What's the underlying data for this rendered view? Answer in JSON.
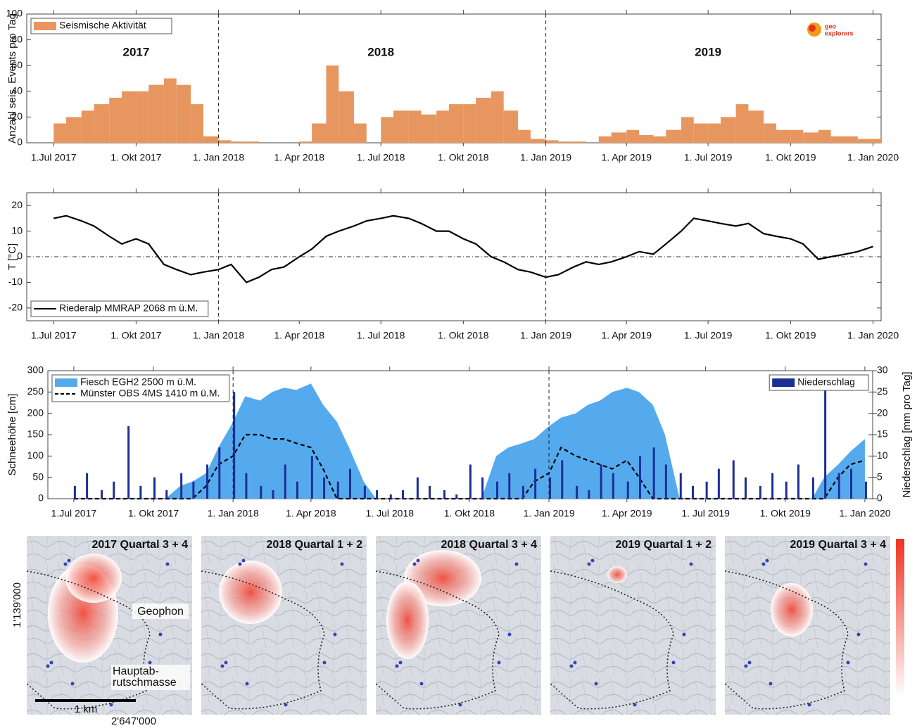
{
  "chart_data": [
    {
      "type": "bar",
      "y_label": "Anzahl seis. Events pro Tag",
      "x": [
        "2017-07-01",
        "2017-07-15",
        "2017-08-01",
        "2017-08-15",
        "2017-09-01",
        "2017-09-15",
        "2017-10-01",
        "2017-10-15",
        "2017-11-01",
        "2017-11-15",
        "2017-12-01",
        "2017-12-15",
        "2018-01-01",
        "2018-01-15",
        "2018-02-01",
        "2018-02-15",
        "2018-03-01",
        "2018-03-15",
        "2018-04-01",
        "2018-04-15",
        "2018-05-01",
        "2018-05-15",
        "2018-06-01",
        "2018-06-15",
        "2018-07-01",
        "2018-07-15",
        "2018-08-01",
        "2018-08-15",
        "2018-09-01",
        "2018-09-15",
        "2018-10-01",
        "2018-10-15",
        "2018-11-01",
        "2018-11-15",
        "2018-12-01",
        "2018-12-15",
        "2019-01-01",
        "2019-01-15",
        "2019-02-01",
        "2019-02-15",
        "2019-03-01",
        "2019-03-15",
        "2019-04-01",
        "2019-04-15",
        "2019-05-01",
        "2019-05-15",
        "2019-06-01",
        "2019-06-15",
        "2019-07-01",
        "2019-07-15",
        "2019-08-01",
        "2019-08-15",
        "2019-09-01",
        "2019-09-15",
        "2019-10-01",
        "2019-10-15",
        "2019-11-01",
        "2019-11-15",
        "2019-12-01",
        "2019-12-15",
        "2020-01-01"
      ],
      "series": [
        {
          "name": "Seismische Aktivität",
          "color": "#e8965f",
          "values": [
            15,
            20,
            25,
            30,
            35,
            40,
            40,
            45,
            50,
            45,
            30,
            5,
            2,
            1,
            1,
            0,
            0,
            0,
            1,
            15,
            60,
            40,
            15,
            0,
            20,
            25,
            25,
            22,
            25,
            30,
            30,
            35,
            40,
            25,
            10,
            3,
            2,
            1,
            1,
            0,
            5,
            8,
            10,
            6,
            5,
            10,
            20,
            15,
            15,
            20,
            30,
            25,
            15,
            10,
            10,
            8,
            10,
            5,
            5,
            3,
            3
          ]
        }
      ],
      "xlim": [
        "2017-06-01",
        "2020-01-10"
      ],
      "xticks": [
        {
          "value": "2017-07-01",
          "label": "1.Jul 2017"
        },
        {
          "value": "2017-10-01",
          "label": "1. Okt 2017"
        },
        {
          "value": "2018-01-01",
          "label": "1. Jan 2018"
        },
        {
          "value": "2018-04-01",
          "label": "1. Apr 2018"
        },
        {
          "value": "2018-07-01",
          "label": "1. Jul 2018"
        },
        {
          "value": "2018-10-01",
          "label": "1. Okt 2018"
        },
        {
          "value": "2019-01-01",
          "label": "1. Jan 2019"
        },
        {
          "value": "2019-04-01",
          "label": "1. Apr 2019"
        },
        {
          "value": "2019-07-01",
          "label": "1. Jul 2019"
        },
        {
          "value": "2019-10-01",
          "label": "1. Okt 2019"
        },
        {
          "value": "2020-01-01",
          "label": "1. Jan 2020"
        }
      ],
      "ylim": [
        0,
        100
      ],
      "yticks": [
        0,
        20,
        40,
        60,
        80,
        100
      ],
      "vlines": [
        "2018-01-01",
        "2019-01-01"
      ],
      "legend": "upper left",
      "annotations": [
        {
          "text": "2017",
          "x": "2017-10-01",
          "y": 70
        },
        {
          "text": "2018",
          "x": "2018-07-01",
          "y": 70
        },
        {
          "text": "2019",
          "x": "2019-07-01",
          "y": 70
        }
      ]
    },
    {
      "type": "line",
      "y_label": "T [°C]",
      "x": [
        "2017-07-01",
        "2017-07-15",
        "2017-08-01",
        "2017-08-15",
        "2017-09-01",
        "2017-09-15",
        "2017-10-01",
        "2017-10-15",
        "2017-11-01",
        "2017-11-15",
        "2017-12-01",
        "2017-12-15",
        "2018-01-01",
        "2018-01-15",
        "2018-02-01",
        "2018-02-15",
        "2018-03-01",
        "2018-03-15",
        "2018-04-01",
        "2018-04-15",
        "2018-05-01",
        "2018-05-15",
        "2018-06-01",
        "2018-06-15",
        "2018-07-01",
        "2018-07-15",
        "2018-08-01",
        "2018-08-15",
        "2018-09-01",
        "2018-09-15",
        "2018-10-01",
        "2018-10-15",
        "2018-11-01",
        "2018-11-15",
        "2018-12-01",
        "2018-12-15",
        "2019-01-01",
        "2019-01-15",
        "2019-02-01",
        "2019-02-15",
        "2019-03-01",
        "2019-03-15",
        "2019-04-01",
        "2019-04-15",
        "2019-05-01",
        "2019-05-15",
        "2019-06-01",
        "2019-06-15",
        "2019-07-01",
        "2019-07-15",
        "2019-08-01",
        "2019-08-15",
        "2019-09-01",
        "2019-09-15",
        "2019-10-01",
        "2019-10-15",
        "2019-11-01",
        "2019-11-15",
        "2019-12-01",
        "2019-12-15",
        "2020-01-01"
      ],
      "series": [
        {
          "name": "Riederalp MMRAP 2068 m ü.M.",
          "color": "#000000",
          "values": [
            15,
            16,
            14,
            12,
            8,
            5,
            7,
            5,
            -3,
            -5,
            -7,
            -6,
            -5,
            -3,
            -10,
            -8,
            -5,
            -4,
            0,
            3,
            8,
            10,
            12,
            14,
            15,
            16,
            15,
            13,
            10,
            10,
            7,
            5,
            0,
            -2,
            -5,
            -6,
            -8,
            -7,
            -4,
            -2,
            -3,
            -2,
            0,
            2,
            1,
            5,
            10,
            15,
            14,
            13,
            12,
            13,
            9,
            8,
            7,
            5,
            -1,
            0,
            1,
            2,
            4
          ]
        }
      ],
      "xlim": [
        "2017-06-01",
        "2020-01-10"
      ],
      "xticks": [
        {
          "value": "2017-07-01",
          "label": "1.Jul 2017"
        },
        {
          "value": "2017-10-01",
          "label": "1. Okt 2017"
        },
        {
          "value": "2018-01-01",
          "label": "1. Jan 2018"
        },
        {
          "value": "2018-04-01",
          "label": "1. Apr 2018"
        },
        {
          "value": "2018-07-01",
          "label": "1. Jul 2018"
        },
        {
          "value": "2018-10-01",
          "label": "1. Okt 2018"
        },
        {
          "value": "2019-01-01",
          "label": "1. Jan 2019"
        },
        {
          "value": "2019-04-01",
          "label": "1. Apr 2019"
        },
        {
          "value": "2019-07-01",
          "label": "1. Jul 2019"
        },
        {
          "value": "2019-10-01",
          "label": "1. Okt 2019"
        },
        {
          "value": "2020-01-01",
          "label": "1. Jan 2020"
        }
      ],
      "ylim": [
        -25,
        25
      ],
      "yticks": [
        -20,
        -10,
        0,
        10,
        20
      ],
      "vlines": [
        "2018-01-01",
        "2019-01-01"
      ],
      "zero_line": true,
      "legend": "lower left"
    },
    {
      "type": "area",
      "y_label": "Schneehöhe [cm]",
      "y2_label": "Niederschlag [mm pro Tag]",
      "x": [
        "2017-07-01",
        "2017-07-15",
        "2017-08-01",
        "2017-08-15",
        "2017-09-01",
        "2017-09-15",
        "2017-10-01",
        "2017-10-15",
        "2017-11-01",
        "2017-11-15",
        "2017-12-01",
        "2017-12-15",
        "2018-01-01",
        "2018-01-15",
        "2018-02-01",
        "2018-02-15",
        "2018-03-01",
        "2018-03-15",
        "2018-04-01",
        "2018-04-15",
        "2018-05-01",
        "2018-05-15",
        "2018-06-01",
        "2018-06-15",
        "2018-07-01",
        "2018-07-15",
        "2018-08-01",
        "2018-08-15",
        "2018-09-01",
        "2018-09-15",
        "2018-10-01",
        "2018-10-15",
        "2018-11-01",
        "2018-11-15",
        "2018-12-01",
        "2018-12-15",
        "2019-01-01",
        "2019-01-15",
        "2019-02-01",
        "2019-02-15",
        "2019-03-01",
        "2019-03-15",
        "2019-04-01",
        "2019-04-15",
        "2019-05-01",
        "2019-05-15",
        "2019-06-01",
        "2019-06-15",
        "2019-07-01",
        "2019-07-15",
        "2019-08-01",
        "2019-08-15",
        "2019-09-01",
        "2019-09-15",
        "2019-10-01",
        "2019-10-15",
        "2019-11-01",
        "2019-11-15",
        "2019-12-01",
        "2019-12-15",
        "2020-01-01"
      ],
      "series": [
        {
          "name": "Fiesch EGH2 2500 m ü.M.",
          "type": "area",
          "color": "#55aaee",
          "values": [
            0,
            0,
            0,
            0,
            0,
            0,
            0,
            0,
            30,
            40,
            60,
            120,
            180,
            240,
            230,
            250,
            260,
            255,
            270,
            220,
            180,
            120,
            40,
            0,
            0,
            0,
            0,
            0,
            0,
            0,
            0,
            0,
            100,
            120,
            130,
            140,
            170,
            190,
            200,
            220,
            230,
            250,
            260,
            250,
            220,
            150,
            0,
            0,
            0,
            0,
            0,
            0,
            0,
            0,
            0,
            0,
            0,
            50,
            80,
            110,
            140
          ]
        },
        {
          "name": "Münster OBS 4MS 1410 m ü.M.",
          "type": "dashed-line",
          "color": "#000000",
          "values": [
            0,
            0,
            0,
            0,
            0,
            0,
            0,
            0,
            0,
            0,
            30,
            80,
            100,
            150,
            150,
            140,
            140,
            130,
            120,
            70,
            0,
            0,
            0,
            0,
            0,
            0,
            0,
            0,
            0,
            0,
            0,
            0,
            0,
            0,
            0,
            40,
            60,
            120,
            100,
            90,
            80,
            70,
            90,
            50,
            0,
            0,
            0,
            0,
            0,
            0,
            0,
            0,
            0,
            0,
            0,
            0,
            0,
            0,
            50,
            80,
            90
          ]
        },
        {
          "name": "Niederschlag",
          "type": "bar",
          "axis": "y2",
          "color": "#1a2f96",
          "values": [
            3,
            6,
            2,
            4,
            17,
            3,
            5,
            2,
            6,
            4,
            8,
            12,
            25,
            6,
            3,
            2,
            8,
            4,
            10,
            5,
            4,
            7,
            3,
            2,
            1,
            2,
            5,
            3,
            2,
            1,
            8,
            5,
            4,
            6,
            3,
            7,
            5,
            9,
            3,
            2,
            8,
            6,
            4,
            10,
            12,
            8,
            6,
            3,
            4,
            7,
            9,
            5,
            3,
            6,
            4,
            8,
            5,
            26,
            6,
            7,
            4
          ]
        }
      ],
      "xlim": [
        "2017-06-01",
        "2020-01-10"
      ],
      "xticks": [
        {
          "value": "2017-07-01",
          "label": "1.Jul 2017"
        },
        {
          "value": "2017-10-01",
          "label": "1. Okt 2017"
        },
        {
          "value": "2018-01-01",
          "label": "1. Jan 2018"
        },
        {
          "value": "2018-04-01",
          "label": "1. Apr 2018"
        },
        {
          "value": "2018-07-01",
          "label": "1. Jul 2018"
        },
        {
          "value": "2018-10-01",
          "label": "1. Okt 2018"
        },
        {
          "value": "2019-01-01",
          "label": "1. Jan 2019"
        },
        {
          "value": "2019-04-01",
          "label": "1. Apr 2019"
        },
        {
          "value": "2019-07-01",
          "label": "1. Jul 2019"
        },
        {
          "value": "2019-10-01",
          "label": "1. Okt 2019"
        },
        {
          "value": "2020-01-01",
          "label": "1. Jan 2020"
        }
      ],
      "ylim": [
        0,
        300
      ],
      "yticks": [
        0,
        50,
        100,
        150,
        200,
        250,
        300
      ],
      "y2lim": [
        0,
        30
      ],
      "y2ticks": [
        0,
        5,
        10,
        15,
        20,
        25,
        30
      ],
      "vlines": [
        "2018-01-01",
        "2019-01-01"
      ],
      "legend": "upper left"
    }
  ],
  "logo": [
    "geo",
    "explorers"
  ],
  "maps": {
    "panels": [
      {
        "title": "2017 Quartal 3 + 4"
      },
      {
        "title": "2018 Quartal 1 + 2"
      },
      {
        "title": "2018 Quartal 3 + 4"
      },
      {
        "title": "2019 Quartal 1 + 2"
      },
      {
        "title": "2019 Quartal 3 + 4"
      }
    ],
    "labels": {
      "geophone": "Geophon",
      "mass": [
        "Hauptab-",
        "rutschmasse"
      ],
      "scale": "1 km",
      "north": "1'139'000",
      "east": "2'647'000"
    }
  }
}
